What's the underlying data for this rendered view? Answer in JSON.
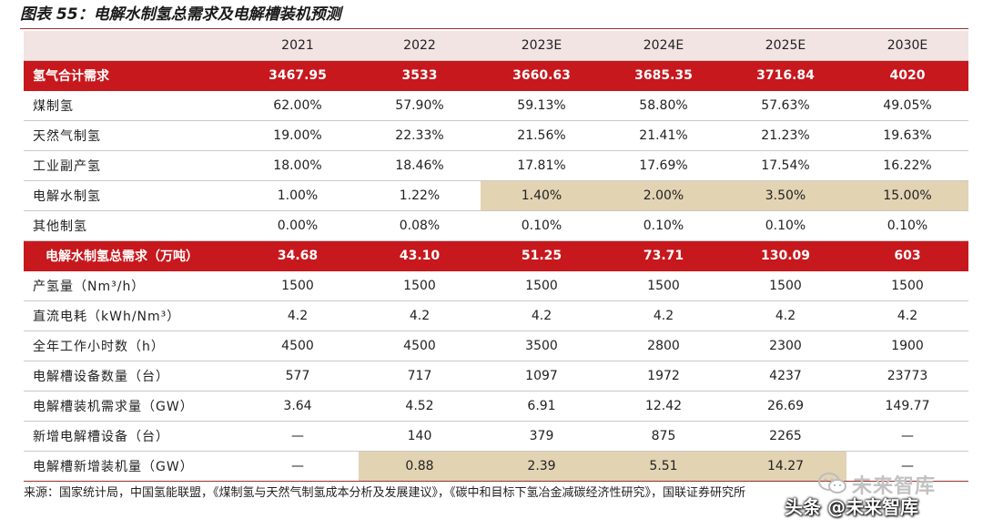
{
  "title": "图表 55：电解水制氢总需求及电解槽装机预测",
  "table": {
    "headers": [
      "",
      "2021",
      "2022",
      "2023E",
      "2024E",
      "2025E",
      "2030E"
    ],
    "rows": [
      {
        "label": "氢气合计需求",
        "values": [
          "3467.95",
          "3533",
          "3660.63",
          "3685.35",
          "3716.84",
          "4020"
        ],
        "style": "red"
      },
      {
        "label": "煤制氢",
        "values": [
          "62.00%",
          "57.90%",
          "59.13%",
          "58.80%",
          "57.63%",
          "49.05%"
        ]
      },
      {
        "label": "天然气制氢",
        "values": [
          "19.00%",
          "22.33%",
          "21.56%",
          "21.41%",
          "21.23%",
          "19.63%"
        ]
      },
      {
        "label": "工业副产氢",
        "values": [
          "18.00%",
          "18.46%",
          "17.81%",
          "17.69%",
          "17.54%",
          "16.22%"
        ]
      },
      {
        "label": "电解水制氢",
        "values": [
          "1.00%",
          "1.22%",
          "1.40%",
          "2.00%",
          "3.50%",
          "15.00%"
        ],
        "highlight": [
          2,
          3,
          4,
          5
        ]
      },
      {
        "label": "其他制氢",
        "values": [
          "0.00%",
          "0.08%",
          "0.10%",
          "0.10%",
          "0.10%",
          "0.10%"
        ]
      },
      {
        "label": "电解水制氢总需求（万吨）",
        "values": [
          "34.68",
          "43.10",
          "51.25",
          "73.71",
          "130.09",
          "603"
        ],
        "style": "red"
      },
      {
        "label": "产氢量（Nm³/h）",
        "values": [
          "1500",
          "1500",
          "1500",
          "1500",
          "1500",
          "1500"
        ]
      },
      {
        "label": "直流电耗（kWh/Nm³）",
        "values": [
          "4.2",
          "4.2",
          "4.2",
          "4.2",
          "4.2",
          "4.2"
        ]
      },
      {
        "label": "全年工作小时数（h）",
        "values": [
          "4500",
          "4500",
          "3500",
          "2800",
          "2300",
          "1900"
        ]
      },
      {
        "label": "电解槽设备数量（台）",
        "values": [
          "577",
          "717",
          "1097",
          "1972",
          "4237",
          "23773"
        ]
      },
      {
        "label": "电解槽装机需求量（GW）",
        "values": [
          "3.64",
          "4.52",
          "6.91",
          "12.42",
          "26.69",
          "149.77"
        ]
      },
      {
        "label": "新增电解槽设备（台）",
        "values": [
          "—",
          "140",
          "379",
          "875",
          "2265",
          "—"
        ]
      },
      {
        "label": "电解槽新增装机量（GW）",
        "values": [
          "—",
          "0.88",
          "2.39",
          "5.51",
          "14.27",
          "—"
        ],
        "highlight": [
          1,
          2,
          3,
          4
        ]
      }
    ]
  },
  "source": "来源：国家统计局，中国氢能联盟，《煤制氢与天然气制氢成本分析及发展建议》，《碳中和目标下氢冶金减碳经济性研究》，国联证券研究所",
  "watermark": {
    "icon": "wechat-icon",
    "line1": "未来智库",
    "line2": "头条 @未来智库"
  },
  "colors": {
    "red_row": "#c7181d",
    "header_bg": "#f1e4e3",
    "highlight": "#e2d3b3"
  }
}
